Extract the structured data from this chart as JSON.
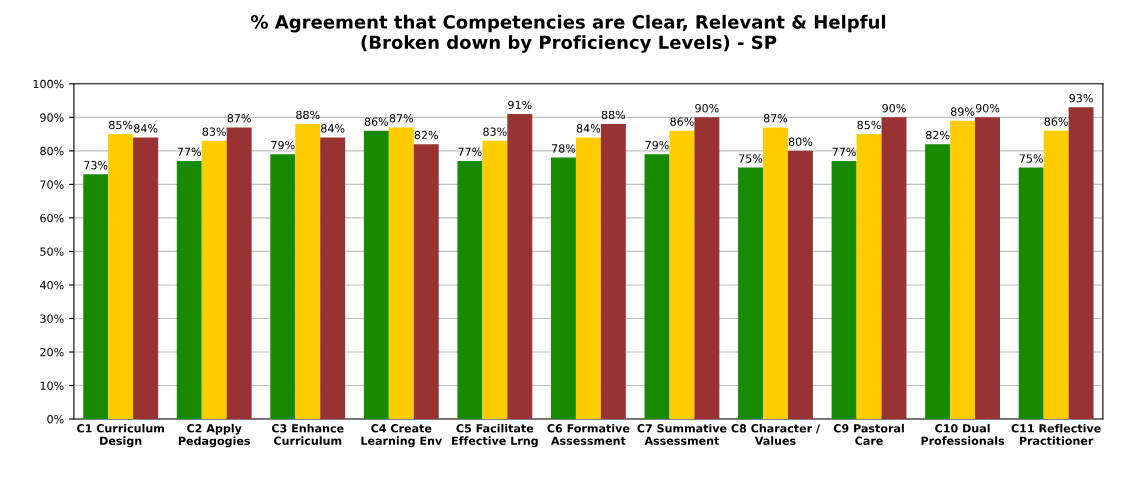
{
  "chart_data": {
    "type": "bar",
    "title": "% Agreement that Competencies are Clear, Relevant & Helpful\n(Broken down by Proficiency Levels) - SP",
    "categories": [
      "C1 Curriculum\nDesign",
      "C2 Apply\nPedagogies",
      "C3 Enhance\nCurriculum",
      "C4 Create\nLearning Env",
      "C5 Facilitate\nEffective Lrng",
      "C6 Formative\nAssessment",
      "C7 Summative\nAssessment",
      "C8 Character /\nValues",
      "C9 Pastoral\nCare",
      "C10 Dual\nProfessionals",
      "C11 Reflective\nPractitioner"
    ],
    "series": [
      {
        "color": "#178a00",
        "values": [
          73,
          77,
          79,
          86,
          77,
          78,
          79,
          75,
          77,
          82,
          75
        ],
        "value_labels": [
          "73%",
          "77%",
          "79%",
          "86%",
          "77%",
          "78%",
          "79%",
          "75%",
          "77%",
          "82%",
          "75%"
        ]
      },
      {
        "color": "#ffcc00",
        "values": [
          85,
          83,
          88,
          87,
          83,
          84,
          86,
          87,
          85,
          89,
          86
        ],
        "value_labels": [
          "85%",
          "83%",
          "88%",
          "87%",
          "83%",
          "84%",
          "86%",
          "87%",
          "85%",
          "89%",
          "86%"
        ]
      },
      {
        "color": "#993333",
        "values": [
          84,
          87,
          84,
          82,
          91,
          88,
          90,
          80,
          90,
          90,
          93
        ],
        "value_labels": [
          "84%",
          "87%",
          "84%",
          "82%",
          "91%",
          "88%",
          "90%",
          "80%",
          "90%",
          "90%",
          "93%"
        ]
      }
    ],
    "ylim": [
      0,
      100
    ],
    "yticks": [
      {
        "value": 0,
        "label": "0%"
      },
      {
        "value": 10,
        "label": "10%"
      },
      {
        "value": 20,
        "label": "20%"
      },
      {
        "value": 30,
        "label": "30%"
      },
      {
        "value": 40,
        "label": "40%"
      },
      {
        "value": 50,
        "label": "50%"
      },
      {
        "value": 60,
        "label": "60%"
      },
      {
        "value": 70,
        "label": "70%"
      },
      {
        "value": 80,
        "label": "80%"
      },
      {
        "value": 90,
        "label": "90%"
      },
      {
        "value": 100,
        "label": "100%"
      }
    ],
    "grid": "y",
    "legend": false
  }
}
